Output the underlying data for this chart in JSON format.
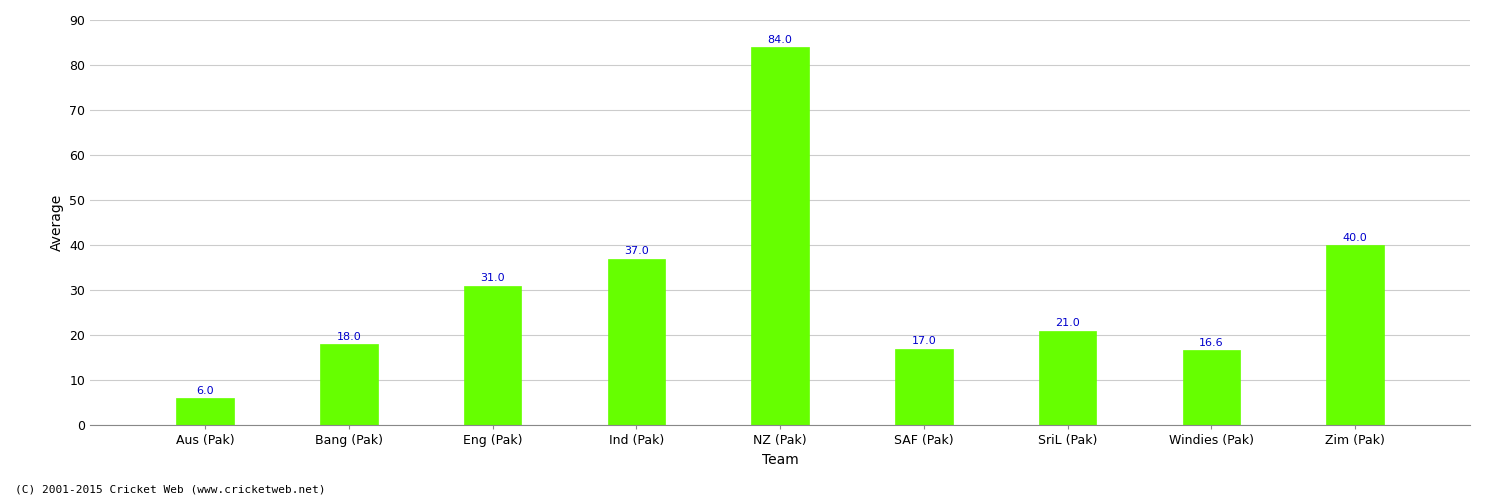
{
  "categories": [
    "Aus (Pak)",
    "Bang (Pak)",
    "Eng (Pak)",
    "Ind (Pak)",
    "NZ (Pak)",
    "SAF (Pak)",
    "SriL (Pak)",
    "Windies (Pak)",
    "Zim (Pak)"
  ],
  "values": [
    6.0,
    18.0,
    31.0,
    37.0,
    84.0,
    17.0,
    21.0,
    16.6,
    40.0
  ],
  "bar_color": "#66ff00",
  "bar_edge_color": "#66ff00",
  "xlabel": "Team",
  "ylabel": "Average",
  "ylim": [
    0,
    90
  ],
  "yticks": [
    0,
    10,
    20,
    30,
    40,
    50,
    60,
    70,
    80,
    90
  ],
  "value_labels": [
    "6.0",
    "18.0",
    "31.0",
    "37.0",
    "84.0",
    "17.0",
    "21.0",
    "16.6",
    "40.0"
  ],
  "label_color": "#0000cc",
  "grid_color": "#cccccc",
  "background_color": "#ffffff",
  "footer_text": "(C) 2001-2015 Cricket Web (www.cricketweb.net)",
  "label_fontsize": 8,
  "axis_label_fontsize": 10,
  "tick_fontsize": 9,
  "footer_fontsize": 8,
  "bar_width": 0.4
}
